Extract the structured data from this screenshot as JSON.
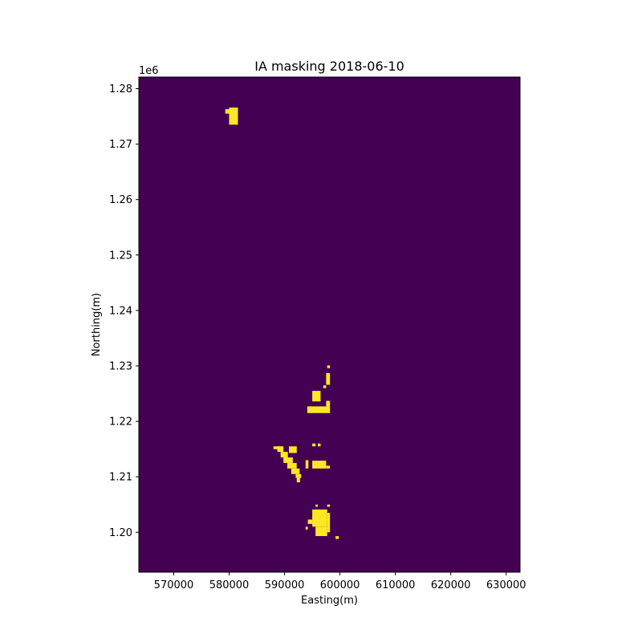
{
  "chart_data": {
    "type": "heatmap",
    "title": "IA masking 2018-06-10",
    "xlabel": "Easting(m)",
    "ylabel": "Northing(m)",
    "y_offset_label": "1e6",
    "xlim": [
      563700,
      632500
    ],
    "ylim": [
      1192800,
      1282100
    ],
    "x_ticks": [
      570000,
      580000,
      590000,
      600000,
      610000,
      620000,
      630000
    ],
    "x_tick_labels": [
      "570000",
      "580000",
      "590000",
      "600000",
      "610000",
      "620000",
      "630000"
    ],
    "y_ticks": [
      1.2,
      1.21,
      1.22,
      1.23,
      1.24,
      1.25,
      1.26,
      1.27,
      1.28
    ],
    "y_tick_labels": [
      "1.20",
      "1.21",
      "1.22",
      "1.23",
      "1.24",
      "1.25",
      "1.26",
      "1.27",
      "1.28"
    ],
    "background_value": 0,
    "mask_value": 1,
    "colors": {
      "background": "#440154",
      "mask": "#fde725"
    },
    "grid": false,
    "masked_regions": [
      {
        "name": "north-patch-main",
        "x": [
          580000,
          581600
        ],
        "y": [
          1273500,
          1276600
        ]
      },
      {
        "name": "north-patch-tab",
        "x": [
          579300,
          580000
        ],
        "y": [
          1275500,
          1276300
        ]
      },
      {
        "name": "cluster-a-top-pixel",
        "x": [
          597700,
          598200
        ],
        "y": [
          1229600,
          1230100
        ]
      },
      {
        "name": "cluster-a-column",
        "x": [
          597500,
          598200
        ],
        "y": [
          1226600,
          1228700
        ]
      },
      {
        "name": "cluster-a-mid-pixel",
        "x": [
          597000,
          597500
        ],
        "y": [
          1226000,
          1226500
        ]
      },
      {
        "name": "cluster-a-left-block",
        "x": [
          595000,
          596500
        ],
        "y": [
          1223600,
          1225500
        ]
      },
      {
        "name": "cluster-a-bottom-band",
        "x": [
          594100,
          598200
        ],
        "y": [
          1221500,
          1222700
        ]
      },
      {
        "name": "cluster-a-right-tab",
        "x": [
          597500,
          598200
        ],
        "y": [
          1222700,
          1223700
        ]
      },
      {
        "name": "cluster-b-dot-1",
        "x": [
          595000,
          595600
        ],
        "y": [
          1215500,
          1216000
        ]
      },
      {
        "name": "cluster-b-dot-2",
        "x": [
          596000,
          596500
        ],
        "y": [
          1215500,
          1216000
        ]
      },
      {
        "name": "cluster-b-diag-1",
        "x": [
          588000,
          589000
        ],
        "y": [
          1215000,
          1215500
        ]
      },
      {
        "name": "cluster-b-diag-2",
        "x": [
          588700,
          589800
        ],
        "y": [
          1214500,
          1215500
        ]
      },
      {
        "name": "cluster-b-diag-3",
        "x": [
          589300,
          590600
        ],
        "y": [
          1213500,
          1214500
        ]
      },
      {
        "name": "cluster-b-diag-4",
        "x": [
          589800,
          591500
        ],
        "y": [
          1212500,
          1213500
        ]
      },
      {
        "name": "cluster-b-diag-5",
        "x": [
          590500,
          592200
        ],
        "y": [
          1211500,
          1212500
        ]
      },
      {
        "name": "cluster-b-diag-6",
        "x": [
          591200,
          592700
        ],
        "y": [
          1210500,
          1211500
        ]
      },
      {
        "name": "cluster-b-diag-7",
        "x": [
          592000,
          593000
        ],
        "y": [
          1209800,
          1210500
        ]
      },
      {
        "name": "cluster-b-diag-8",
        "x": [
          592200,
          592800
        ],
        "y": [
          1209000,
          1209800
        ]
      },
      {
        "name": "cluster-b-upper-block",
        "x": [
          590800,
          592200
        ],
        "y": [
          1214300,
          1215500
        ]
      },
      {
        "name": "cluster-b-bar",
        "x": [
          593800,
          594300
        ],
        "y": [
          1211500,
          1213000
        ]
      },
      {
        "name": "cluster-b-right-block",
        "x": [
          595000,
          597500
        ],
        "y": [
          1211500,
          1212900
        ]
      },
      {
        "name": "cluster-b-right-tail",
        "x": [
          597500,
          598200
        ],
        "y": [
          1211500,
          1212000
        ]
      },
      {
        "name": "cluster-c-top-dot-1",
        "x": [
          595600,
          596000
        ],
        "y": [
          1204600,
          1205000
        ]
      },
      {
        "name": "cluster-c-top-dot-2",
        "x": [
          597700,
          598200
        ],
        "y": [
          1204600,
          1205000
        ]
      },
      {
        "name": "cluster-c-core",
        "x": [
          595000,
          597700
        ],
        "y": [
          1201000,
          1204100
        ]
      },
      {
        "name": "cluster-c-right-lobe",
        "x": [
          597700,
          598200
        ],
        "y": [
          1200000,
          1203500
        ]
      },
      {
        "name": "cluster-c-left-arm",
        "x": [
          594200,
          595000
        ],
        "y": [
          1201500,
          1202300
        ]
      },
      {
        "name": "cluster-c-left-dot",
        "x": [
          593800,
          594200
        ],
        "y": [
          1200500,
          1201000
        ]
      },
      {
        "name": "cluster-c-bottom",
        "x": [
          595600,
          597700
        ],
        "y": [
          1199300,
          1201000
        ]
      },
      {
        "name": "cluster-c-outlier",
        "x": [
          599200,
          599800
        ],
        "y": [
          1198800,
          1199300
        ]
      }
    ]
  }
}
